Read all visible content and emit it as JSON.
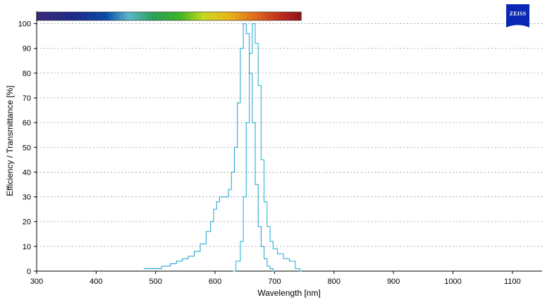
{
  "chart_data": {
    "type": "line",
    "title": "",
    "xlabel": "Wavelength [nm]",
    "ylabel": "Efficiency / Transmittance [%]",
    "xlim": [
      300,
      1150
    ],
    "ylim": [
      0,
      105
    ],
    "xticks": [
      300,
      400,
      500,
      600,
      700,
      800,
      900,
      1000,
      1100
    ],
    "yticks": [
      0,
      10,
      20,
      30,
      40,
      50,
      60,
      70,
      80,
      90,
      100
    ],
    "grid": "horizontal dotted",
    "legend": "none",
    "spectrum_bar_range": [
      300,
      745
    ],
    "series": [
      {
        "color": "#1a9fcc",
        "x": [
          480,
          500,
          520,
          530,
          540,
          550,
          560,
          570,
          580,
          590,
          595,
          600,
          605,
          610,
          615,
          620,
          625,
          630,
          635,
          640,
          645,
          650,
          655,
          660,
          665,
          670,
          675,
          680,
          685,
          690,
          695,
          700
        ],
        "y": [
          1,
          1,
          2,
          3,
          4,
          5,
          6,
          8,
          11,
          16,
          20,
          25,
          28,
          30,
          30,
          30,
          33,
          40,
          50,
          68,
          90,
          100,
          96,
          80,
          60,
          35,
          18,
          10,
          5,
          2,
          1,
          0
        ]
      },
      {
        "color": "#15b0d6",
        "x": [
          630,
          640,
          645,
          650,
          655,
          660,
          665,
          670,
          675,
          680,
          685,
          690,
          695,
          700,
          710,
          720,
          730,
          740,
          745
        ],
        "y": [
          0,
          4,
          12,
          30,
          60,
          88,
          100,
          92,
          75,
          45,
          28,
          18,
          12,
          9,
          7,
          5,
          4,
          1,
          0
        ]
      }
    ]
  },
  "logo": {
    "text": "ZEISS",
    "color": "#0a28b4"
  },
  "colors": {
    "grid": "#9a9a9a",
    "axis": "#000000"
  }
}
